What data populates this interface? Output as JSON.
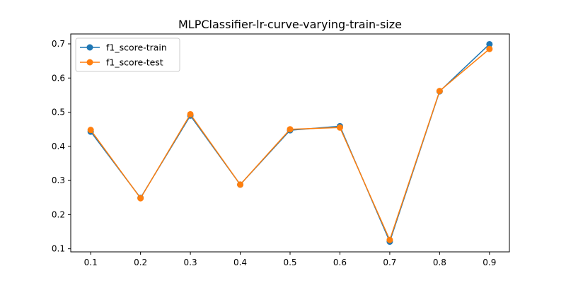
{
  "chart_data": {
    "type": "line",
    "title": "MLPClassifier-lr-curve-varying-train-size",
    "xlabel": "",
    "ylabel": "",
    "x": [
      0.1,
      0.2,
      0.3,
      0.4,
      0.5,
      0.6,
      0.7,
      0.8,
      0.9
    ],
    "x_tick_labels": [
      "0.1",
      "0.2",
      "0.3",
      "0.4",
      "0.5",
      "0.6",
      "0.7",
      "0.8",
      "0.9"
    ],
    "y_ticks": [
      0.1,
      0.2,
      0.3,
      0.4,
      0.5,
      0.6,
      0.7
    ],
    "y_tick_labels": [
      "0.1",
      "0.2",
      "0.3",
      "0.4",
      "0.5",
      "0.6",
      "0.7"
    ],
    "xlim": [
      0.06,
      0.94
    ],
    "ylim": [
      0.091,
      0.729
    ],
    "grid": false,
    "legend_position": "top-left",
    "series": [
      {
        "name": "f1_score-train",
        "color": "#1f77b4",
        "values": [
          0.443,
          0.249,
          0.49,
          0.288,
          0.447,
          0.459,
          0.121,
          0.561,
          0.699
        ]
      },
      {
        "name": "f1_score-test",
        "color": "#ff7f0e",
        "values": [
          0.448,
          0.248,
          0.494,
          0.288,
          0.45,
          0.455,
          0.126,
          0.562,
          0.685
        ]
      }
    ]
  }
}
